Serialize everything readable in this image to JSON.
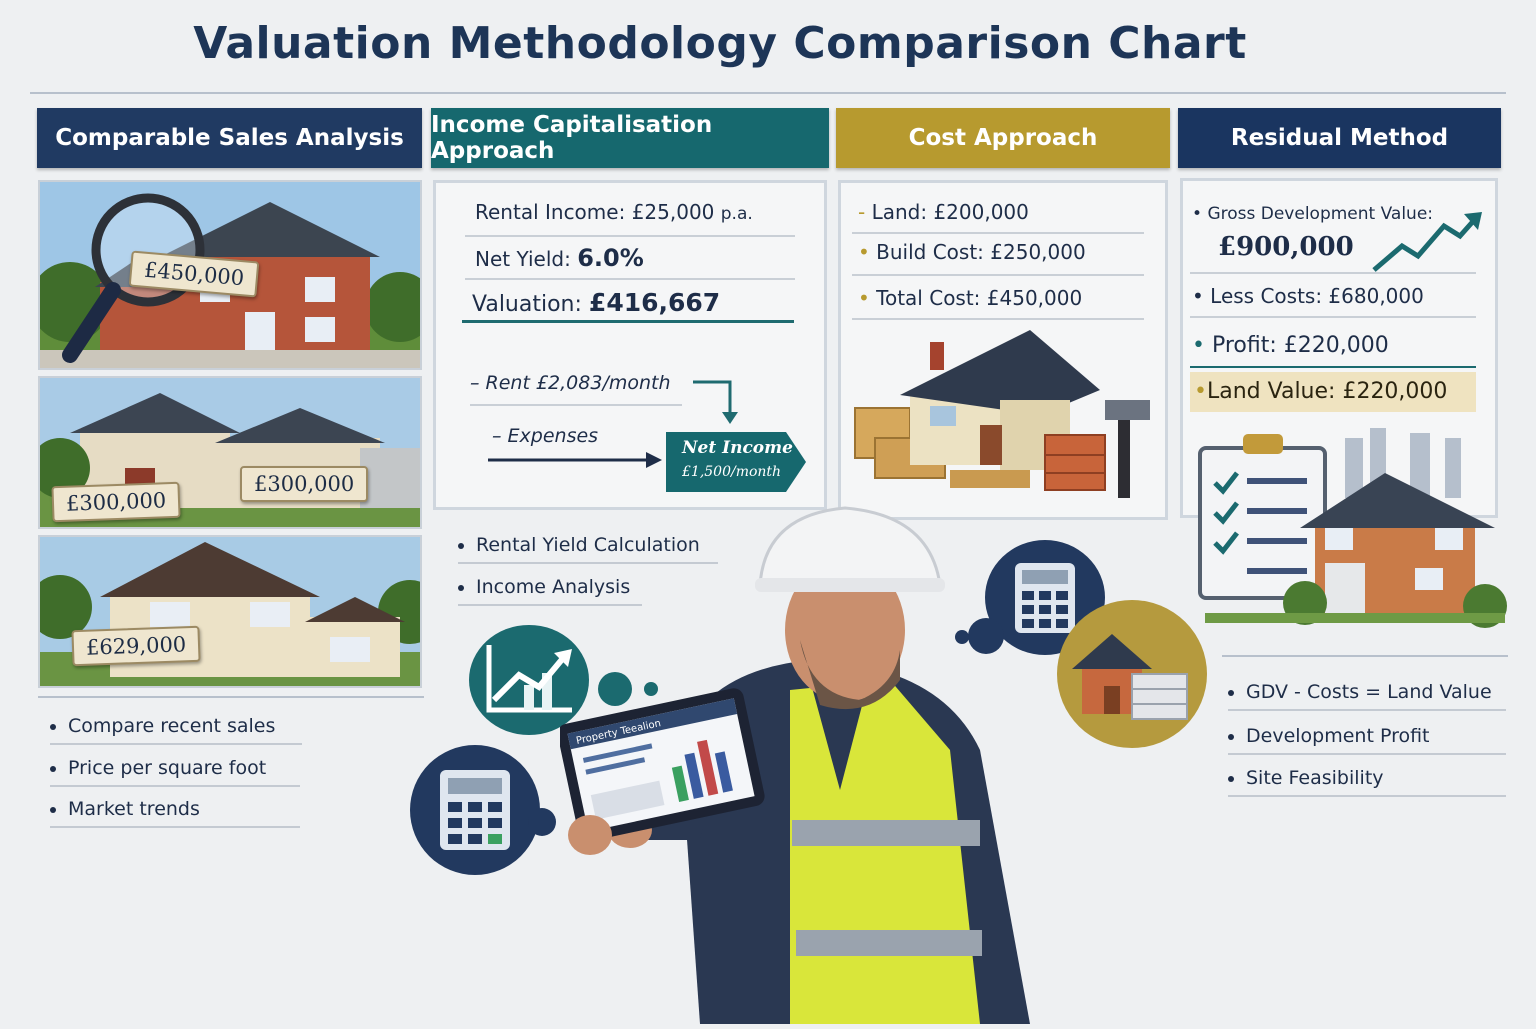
{
  "title": "Valuation Methodology Comparison Chart",
  "colors": {
    "navy": "#203a62",
    "teal": "#16686e",
    "gold": "#b79a2f",
    "navy_dark": "#1a3560"
  },
  "columns": [
    {
      "heading": "Comparable Sales Analysis",
      "price_tags": [
        "£450,000",
        "£300,000",
        "£300,000",
        "£629,000"
      ],
      "bullets": [
        "Compare recent sales",
        "Price per square foot",
        "Market trends"
      ]
    },
    {
      "heading": "Income Capitalisation Approach",
      "rental_income_label": "Rental Income:",
      "rental_income_value": "£25,000",
      "rental_income_unit": "p.a.",
      "net_yield_label": "Net Yield:",
      "net_yield_value": "6.0%",
      "valuation_label": "Valuation:",
      "valuation_value": "£416,667",
      "rent_line": "– Rent £2,083/month",
      "expenses_line": "– Expenses",
      "net_income_title": "Net Income",
      "net_income_value": "£1,500/month",
      "bullets": [
        "Rental Yield Calculation",
        "Income Analysis"
      ]
    },
    {
      "heading": "Cost Approach",
      "lines": [
        "Land: £200,000",
        "Build Cost: £250,000",
        "Total Cost: £450,000"
      ]
    },
    {
      "heading": "Residual Method",
      "gdv_label": "Gross Development Value:",
      "gdv_value": "£900,000",
      "less_costs": "Less Costs: £680,000",
      "profit": "Profit: £220,000",
      "land_value": "Land Value: £220,000",
      "bullets": [
        "GDV - Costs = Land Value",
        "Development Profit",
        "Site Feasibility"
      ]
    }
  ],
  "tablet_screen_title": "Property Teealion",
  "icons": [
    "magnifier-icon",
    "calculator-icon",
    "chart-up-icon",
    "house-build-icon",
    "checklist-icon",
    "hammer-icon",
    "trend-arrow-icon"
  ]
}
